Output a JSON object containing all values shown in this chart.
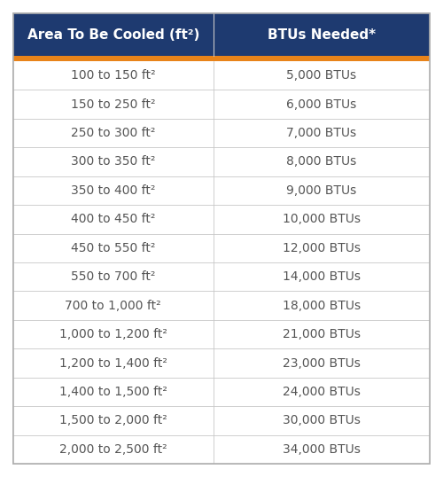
{
  "header_col1": "Area To Be Cooled (ft²)",
  "header_col2": "BTUs Needed*",
  "rows": [
    [
      "100 to 150 ft²",
      "5,000 BTUs"
    ],
    [
      "150 to 250 ft²",
      "6,000 BTUs"
    ],
    [
      "250 to 300 ft²",
      "7,000 BTUs"
    ],
    [
      "300 to 350 ft²",
      "8,000 BTUs"
    ],
    [
      "350 to 400 ft²",
      "9,000 BTUs"
    ],
    [
      "400 to 450 ft²",
      "10,000 BTUs"
    ],
    [
      "450 to 550 ft²",
      "12,000 BTUs"
    ],
    [
      "550 to 700 ft²",
      "14,000 BTUs"
    ],
    [
      "700 to 1,000 ft²",
      "18,000 BTUs"
    ],
    [
      "1,000 to 1,200 ft²",
      "21,000 BTUs"
    ],
    [
      "1,200 to 1,400 ft²",
      "23,000 BTUs"
    ],
    [
      "1,400 to 1,500 ft²",
      "24,000 BTUs"
    ],
    [
      "1,500 to 2,000 ft²",
      "30,000 BTUs"
    ],
    [
      "2,000 to 2,500 ft²",
      "34,000 BTUs"
    ]
  ],
  "header_bg_color": "#1e3a70",
  "header_text_color": "#ffffff",
  "orange_line_color": "#e8831a",
  "row_text_color": "#555555",
  "divider_color": "#c8c8c8",
  "outer_border_color": "#b0b0b0",
  "background_color": "#ffffff",
  "header_fontsize": 11,
  "row_fontsize": 10,
  "col_split": 0.48
}
